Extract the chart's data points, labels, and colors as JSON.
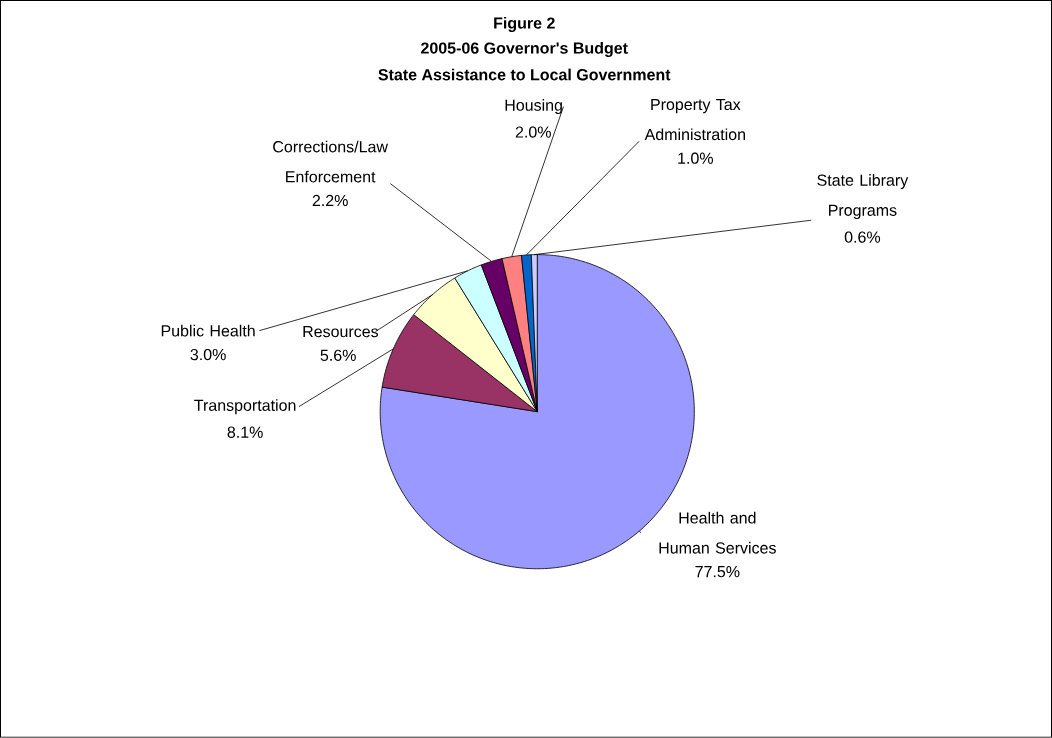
{
  "chart_data": {
    "type": "pie",
    "title": "2005-06 Governor's Budget",
    "subtitle": "State Assistance to Local Government",
    "annotations": [
      "Figure 2"
    ],
    "categories": [
      "Health and Human Services",
      "Transportation",
      "Resources",
      "Public Health",
      "Corrections/Law Enforcement",
      "Housing",
      "Property Tax Administration",
      "State Library Programs"
    ],
    "values": [
      77.5,
      8.1,
      5.6,
      3.0,
      2.2,
      2.0,
      1.0,
      0.6
    ],
    "value_labels": [
      "77.5%",
      "8.1%",
      "5.6%",
      "3.0%",
      "2.2%",
      "2.0%",
      "1.0%",
      "0.6%"
    ],
    "colors": [
      "#9999ff",
      "#993366",
      "#ffffcc",
      "#ccffff",
      "#660066",
      "#ff8080",
      "#0066cc",
      "#ccccff"
    ]
  }
}
